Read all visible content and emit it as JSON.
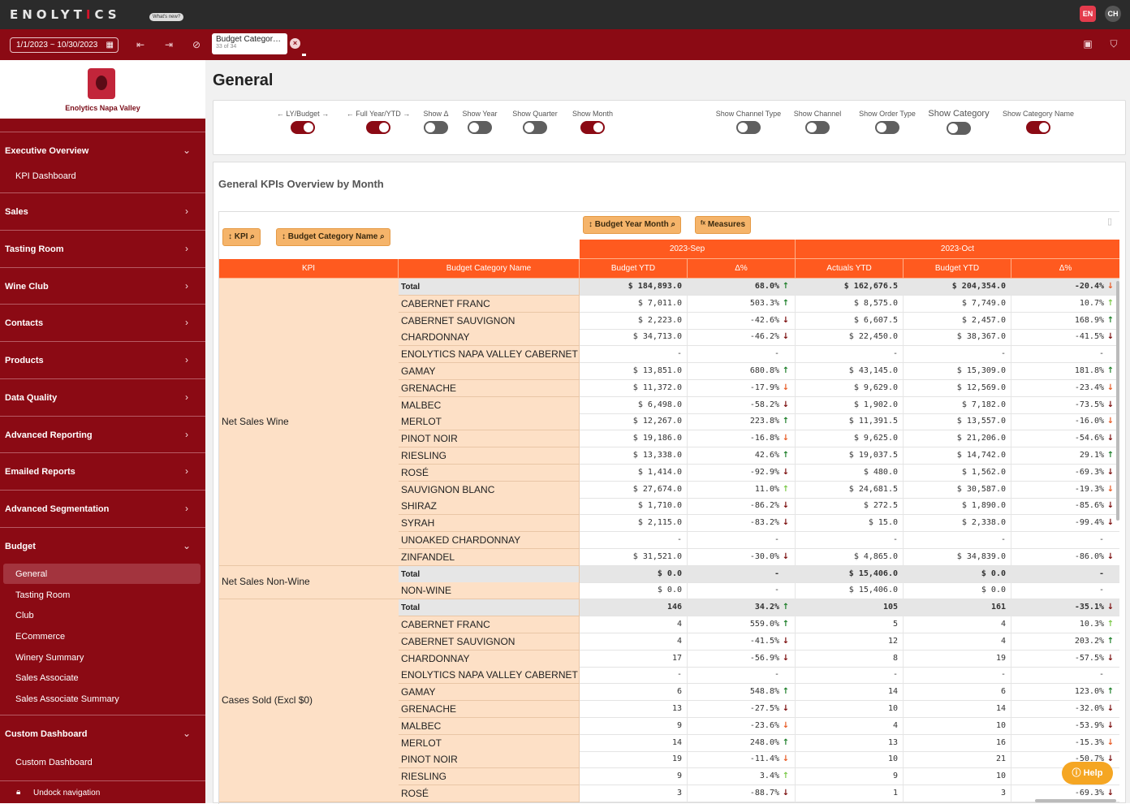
{
  "app": {
    "logo_text_a": "ENOLYT",
    "logo_text_accent": "I",
    "logo_text_b": "CS",
    "whats_new": "What's new?",
    "user_lang": "EN",
    "user_initials": "CH"
  },
  "toolbar": {
    "date_range": "1/1/2023 ~ 10/30/2023",
    "selection_title": "Budget Categor…",
    "selection_count": "33 of 34"
  },
  "sidebar": {
    "brand_name": "Enolytics Napa Valley",
    "groups": [
      {
        "label": "Executive Overview",
        "expanded": true
      },
      {
        "label": "Sales"
      },
      {
        "label": "Tasting Room"
      },
      {
        "label": "Wine Club"
      },
      {
        "label": "Contacts"
      },
      {
        "label": "Products"
      },
      {
        "label": "Data Quality"
      },
      {
        "label": "Advanced Reporting"
      },
      {
        "label": "Emailed Reports"
      },
      {
        "label": "Advanced Segmentation"
      },
      {
        "label": "Budget",
        "expanded": true
      },
      {
        "label": "Custom Dashboard",
        "expanded": true
      }
    ],
    "exec_items": [
      "KPI Dashboard"
    ],
    "budget_items": [
      "General",
      "Tasting Room",
      "Club",
      "ECommerce",
      "Winery Summary",
      "Sales Associate",
      "Sales Associate Summary"
    ],
    "custom_items": [
      "Custom Dashboard"
    ],
    "undock": "Undock navigation"
  },
  "page": {
    "title": "General",
    "table_title": "General KPIs Overview by Month",
    "help": "Help"
  },
  "toggles": [
    {
      "label": "← LY/Budget →",
      "on": true
    },
    {
      "label": "← Full Year/YTD →",
      "on": true
    },
    {
      "label": "Show Δ",
      "on": false
    },
    {
      "label": "Show Year",
      "on": false
    },
    {
      "label": "Show Quarter",
      "on": false
    },
    {
      "label": "Show Month",
      "on": true
    },
    {
      "label": "Show Channel Type",
      "on": false
    },
    {
      "label": "Show Channel",
      "on": false
    },
    {
      "label": "Show Order Type",
      "on": false
    },
    {
      "label": "Show Category",
      "on": false
    },
    {
      "label": "Show Category Name",
      "on": true
    }
  ],
  "table": {
    "pills": {
      "kpi": "KPI",
      "category": "Budget Category Name",
      "month": "Budget Year Month",
      "measures": "Measures"
    },
    "months": [
      "2023-Sep",
      "2023-Oct"
    ],
    "columns": [
      "KPI",
      "Budget Category Name",
      "Budget YTD",
      "Δ%",
      "Actuals YTD",
      "Budget YTD",
      "Δ%"
    ],
    "groups": [
      {
        "kpi": "Net Sales Wine",
        "rows": [
          {
            "name": "Total",
            "total": true,
            "c1": "$ 184,893.0",
            "c2": "68.0%",
            "a2": "up-g",
            "c3": "$ 162,676.5",
            "c4": "$ 204,354.0",
            "c5": "-20.4%",
            "a5": "dn-o"
          },
          {
            "name": "CABERNET FRANC",
            "c1": "$ 7,011.0",
            "c2": "503.3%",
            "a2": "up-g",
            "c3": "$ 8,575.0",
            "c4": "$ 7,749.0",
            "c5": "10.7%",
            "a5": "up-l"
          },
          {
            "name": "CABERNET SAUVIGNON",
            "c1": "$ 2,223.0",
            "c2": "-42.6%",
            "a2": "dn-r",
            "c3": "$ 6,607.5",
            "c4": "$ 2,457.0",
            "c5": "168.9%",
            "a5": "up-g"
          },
          {
            "name": "CHARDONNAY",
            "c1": "$ 34,713.0",
            "c2": "-46.2%",
            "a2": "dn-r",
            "c3": "$ 22,450.0",
            "c4": "$ 38,367.0",
            "c5": "-41.5%",
            "a5": "dn-r"
          },
          {
            "name": "ENOLYTICS NAPA VALLEY CABERNET",
            "c1": "-",
            "c2": "-",
            "a2": "",
            "c3": "-",
            "c4": "-",
            "c5": "-",
            "a5": ""
          },
          {
            "name": "GAMAY",
            "c1": "$ 13,851.0",
            "c2": "680.8%",
            "a2": "up-g",
            "c3": "$ 43,145.0",
            "c4": "$ 15,309.0",
            "c5": "181.8%",
            "a5": "up-g"
          },
          {
            "name": "GRENACHE",
            "c1": "$ 11,372.0",
            "c2": "-17.9%",
            "a2": "dn-o",
            "c3": "$ 9,629.0",
            "c4": "$ 12,569.0",
            "c5": "-23.4%",
            "a5": "dn-o"
          },
          {
            "name": "MALBEC",
            "c1": "$ 6,498.0",
            "c2": "-58.2%",
            "a2": "dn-r",
            "c3": "$ 1,902.0",
            "c4": "$ 7,182.0",
            "c5": "-73.5%",
            "a5": "dn-r"
          },
          {
            "name": "MERLOT",
            "c1": "$ 12,267.0",
            "c2": "223.8%",
            "a2": "up-g",
            "c3": "$ 11,391.5",
            "c4": "$ 13,557.0",
            "c5": "-16.0%",
            "a5": "dn-o"
          },
          {
            "name": "PINOT NOIR",
            "c1": "$ 19,186.0",
            "c2": "-16.8%",
            "a2": "dn-o",
            "c3": "$ 9,625.0",
            "c4": "$ 21,206.0",
            "c5": "-54.6%",
            "a5": "dn-r"
          },
          {
            "name": "RIESLING",
            "c1": "$ 13,338.0",
            "c2": "42.6%",
            "a2": "up-g",
            "c3": "$ 19,037.5",
            "c4": "$ 14,742.0",
            "c5": "29.1%",
            "a5": "up-g"
          },
          {
            "name": "ROSÉ",
            "c1": "$ 1,414.0",
            "c2": "-92.9%",
            "a2": "dn-r",
            "c3": "$ 480.0",
            "c4": "$ 1,562.0",
            "c5": "-69.3%",
            "a5": "dn-r"
          },
          {
            "name": "SAUVIGNON BLANC",
            "c1": "$ 27,674.0",
            "c2": "11.0%",
            "a2": "up-l",
            "c3": "$ 24,681.5",
            "c4": "$ 30,587.0",
            "c5": "-19.3%",
            "a5": "dn-o"
          },
          {
            "name": "SHIRAZ",
            "c1": "$ 1,710.0",
            "c2": "-86.2%",
            "a2": "dn-r",
            "c3": "$ 272.5",
            "c4": "$ 1,890.0",
            "c5": "-85.6%",
            "a5": "dn-r"
          },
          {
            "name": "SYRAH",
            "c1": "$ 2,115.0",
            "c2": "-83.2%",
            "a2": "dn-r",
            "c3": "$ 15.0",
            "c4": "$ 2,338.0",
            "c5": "-99.4%",
            "a5": "dn-r"
          },
          {
            "name": "UNOAKED CHARDONNAY",
            "c1": "-",
            "c2": "-",
            "a2": "",
            "c3": "-",
            "c4": "-",
            "c5": "-",
            "a5": ""
          },
          {
            "name": "ZINFANDEL",
            "c1": "$ 31,521.0",
            "c2": "-30.0%",
            "a2": "dn-r",
            "c3": "$ 4,865.0",
            "c4": "$ 34,839.0",
            "c5": "-86.0%",
            "a5": "dn-r"
          }
        ]
      },
      {
        "kpi": "Net Sales Non-Wine",
        "rows": [
          {
            "name": "Total",
            "total": true,
            "c1": "$ 0.0",
            "c2": "-",
            "a2": "",
            "c3": "$ 15,406.0",
            "c4": "$ 0.0",
            "c5": "-",
            "a5": ""
          },
          {
            "name": "NON-WINE",
            "c1": "$ 0.0",
            "c2": "-",
            "a2": "",
            "c3": "$ 15,406.0",
            "c4": "$ 0.0",
            "c5": "-",
            "a5": ""
          }
        ]
      },
      {
        "kpi": "Cases Sold (Excl $0)",
        "rows": [
          {
            "name": "Total",
            "total": true,
            "c1": "146",
            "c2": "34.2%",
            "a2": "up-g",
            "c3": "105",
            "c4": "161",
            "c5": "-35.1%",
            "a5": "dn-r"
          },
          {
            "name": "CABERNET FRANC",
            "c1": "4",
            "c2": "559.0%",
            "a2": "up-g",
            "c3": "5",
            "c4": "4",
            "c5": "10.3%",
            "a5": "up-l"
          },
          {
            "name": "CABERNET SAUVIGNON",
            "c1": "4",
            "c2": "-41.5%",
            "a2": "dn-r",
            "c3": "12",
            "c4": "4",
            "c5": "203.2%",
            "a5": "up-g"
          },
          {
            "name": "CHARDONNAY",
            "c1": "17",
            "c2": "-56.9%",
            "a2": "dn-r",
            "c3": "8",
            "c4": "19",
            "c5": "-57.5%",
            "a5": "dn-r"
          },
          {
            "name": "ENOLYTICS NAPA VALLEY CABERNET",
            "c1": "-",
            "c2": "-",
            "a2": "",
            "c3": "-",
            "c4": "-",
            "c5": "-",
            "a5": ""
          },
          {
            "name": "GAMAY",
            "c1": "6",
            "c2": "548.8%",
            "a2": "up-g",
            "c3": "14",
            "c4": "6",
            "c5": "123.0%",
            "a5": "up-g"
          },
          {
            "name": "GRENACHE",
            "c1": "13",
            "c2": "-27.5%",
            "a2": "dn-r",
            "c3": "10",
            "c4": "14",
            "c5": "-32.0%",
            "a5": "dn-r"
          },
          {
            "name": "MALBEC",
            "c1": "9",
            "c2": "-23.6%",
            "a2": "dn-o",
            "c3": "4",
            "c4": "10",
            "c5": "-53.9%",
            "a5": "dn-r"
          },
          {
            "name": "MERLOT",
            "c1": "14",
            "c2": "248.0%",
            "a2": "up-g",
            "c3": "13",
            "c4": "16",
            "c5": "-15.3%",
            "a5": "dn-o"
          },
          {
            "name": "PINOT NOIR",
            "c1": "19",
            "c2": "-11.4%",
            "a2": "dn-o",
            "c3": "10",
            "c4": "21",
            "c5": "-50.7%",
            "a5": "dn-r"
          },
          {
            "name": "RIESLING",
            "c1": "9",
            "c2": "3.4%",
            "a2": "up-l",
            "c3": "9",
            "c4": "10",
            "c5": "",
            "a5": ""
          },
          {
            "name": "ROSÉ",
            "c1": "3",
            "c2": "-88.7%",
            "a2": "dn-r",
            "c3": "1",
            "c4": "3",
            "c5": "-69.3%",
            "a5": "dn-r"
          }
        ]
      }
    ]
  }
}
